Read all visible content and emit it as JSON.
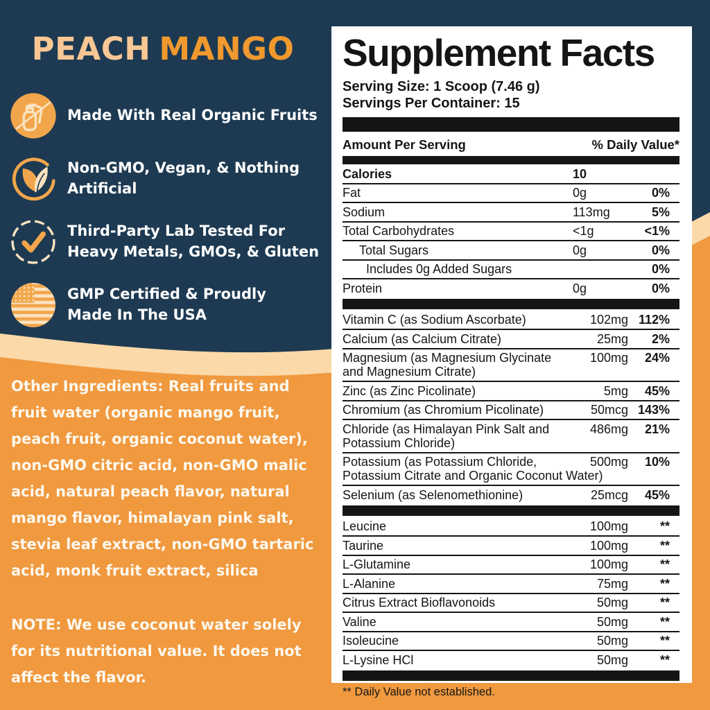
{
  "colors": {
    "navy_background": "#1D3A52",
    "orange_background": "#F0993F",
    "cream_wave": "#FBD9A9",
    "title_peach": "#F8C794",
    "title_mango": "#F0992F",
    "icon_orange": "#F2A64B",
    "icon_cream": "#FBE3C0",
    "text_white": "#FFFFFF",
    "panel_black": "#151515"
  },
  "left": {
    "title_peach": "PEACH",
    "title_mango": "MANGO",
    "bullets": [
      {
        "icon": "no-spray-bottle-icon",
        "line1": "Made With Real Organic Fruits",
        "line2": ""
      },
      {
        "icon": "leaves-icon",
        "line1": "Non-GMO, Vegan, & Nothing",
        "line2": "Artificial"
      },
      {
        "icon": "checkmark-icon",
        "line1": "Third-Party Lab Tested For",
        "line2": "Heavy Metals, GMOs, & Gluten"
      },
      {
        "icon": "usa-flag-icon",
        "line1": "GMP Certified & Proudly",
        "line2": "Made In The USA"
      }
    ],
    "other_ingredients": "Other Ingredients: Real fruits and fruit water (organic mango fruit, peach fruit, organic coconut water), non-GMO citric acid, non-GMO malic acid, natural peach flavor, natural mango flavor, himalayan pink salt, stevia leaf extract, non-GMO tartaric acid, monk fruit extract, silica",
    "note": "NOTE: We use coconut water solely for its nutritional value. It does not affect the flavor."
  },
  "panel": {
    "title": "Supplement Facts",
    "serving_size": "Serving Size: 1 Scoop (7.46 g)",
    "servings_per_container": "Servings Per Container: 15",
    "header_left": "Amount Per Serving",
    "header_right": "% Daily Value*",
    "sections": [
      {
        "id": "main",
        "rows": [
          {
            "name": "Calories",
            "amount": "10",
            "dv": "",
            "name_bold": true,
            "amount_bold": true
          },
          {
            "name": "Fat",
            "amount": "0g",
            "dv": "0%"
          },
          {
            "name": "Sodium",
            "amount": "113mg",
            "dv": "5%"
          },
          {
            "name": "Total Carbohydrates",
            "amount": "<1g",
            "dv": "<1%"
          },
          {
            "name": "Total Sugars",
            "amount": "0g",
            "dv": "0%",
            "indent": 1
          },
          {
            "name": "Includes 0g Added Sugars",
            "amount": "",
            "dv": "0%",
            "indent": 2
          },
          {
            "name": "Protein",
            "amount": "0g",
            "dv": "0%"
          }
        ]
      },
      {
        "id": "vits",
        "rows": [
          {
            "name": "Vitamin C (as Sodium Ascorbate)",
            "amount": "102mg",
            "dv": "112%"
          },
          {
            "name": "Calcium (as Calcium Citrate)",
            "amount": "25mg",
            "dv": "2%"
          },
          {
            "name": "Magnesium (as Magnesium Glycinate",
            "name2": "and Magnesium Citrate)",
            "amount": "100mg",
            "dv": "24%"
          },
          {
            "name": "Zinc (as Zinc Picolinate)",
            "amount": "5mg",
            "dv": "45%"
          },
          {
            "name": "Chromium (as Chromium Picolinate)",
            "amount": "50mcg",
            "dv": "143%"
          },
          {
            "name": "Chloride (as Himalayan Pink Salt and",
            "name2": "Potassium Chloride)",
            "amount": "486mg",
            "dv": "21%"
          },
          {
            "name": "Potassium (as Potassium Chloride,",
            "name2": "Potassium Citrate and Organic Coconut Water)",
            "amount": "500mg",
            "dv": "10%"
          },
          {
            "name": "Selenium (as Selenomethionine)",
            "amount": "25mcg",
            "dv": "45%"
          }
        ]
      },
      {
        "id": "amino",
        "rows": [
          {
            "name": "Leucine",
            "amount": "100mg",
            "dv": "**"
          },
          {
            "name": "Taurine",
            "amount": "100mg",
            "dv": "**"
          },
          {
            "name": "L-Glutamine",
            "amount": "100mg",
            "dv": "**"
          },
          {
            "name": "L-Alanine",
            "amount": "75mg",
            "dv": "**"
          },
          {
            "name": "Citrus Extract Bioflavonoids",
            "amount": "50mg",
            "dv": "**"
          },
          {
            "name": "Valine",
            "amount": "50mg",
            "dv": "**"
          },
          {
            "name": "Isoleucine",
            "amount": "50mg",
            "dv": "**"
          },
          {
            "name": "L-Lysine HCl",
            "amount": "50mg",
            "dv": "**"
          }
        ]
      }
    ],
    "footnote": "** Daily Value not established."
  }
}
